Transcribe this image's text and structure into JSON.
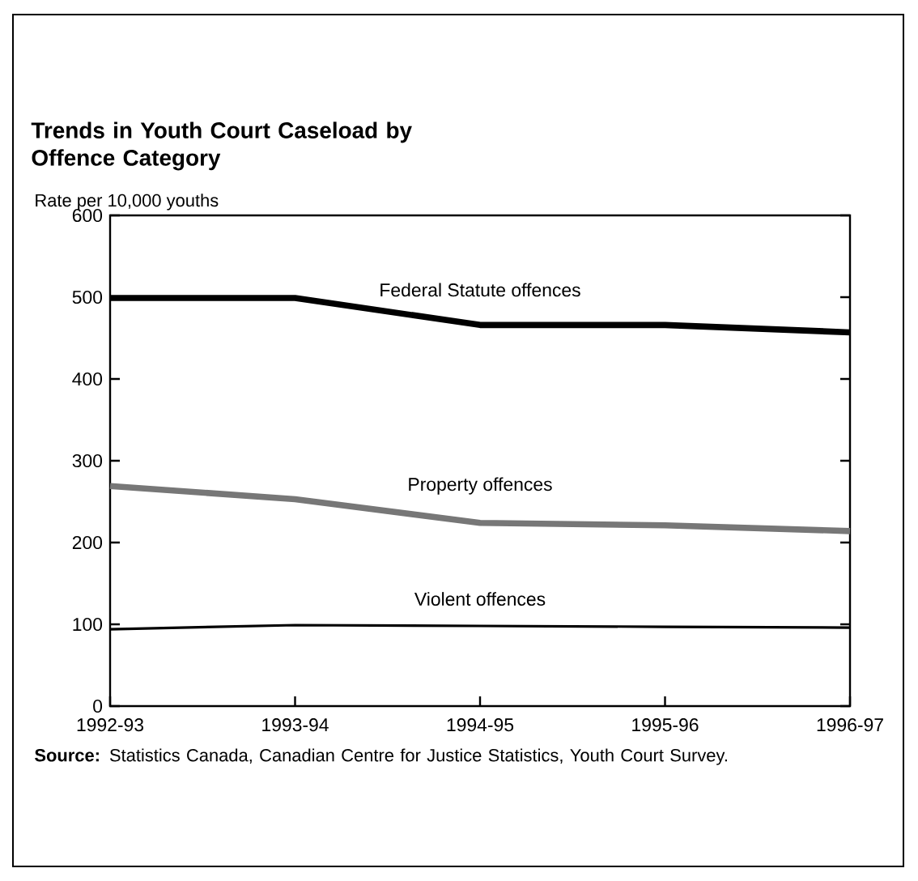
{
  "chart_data": {
    "type": "line",
    "title": "Trends in Youth Court Caseload by Offence Category",
    "ylabel": "Rate per 10,000 youths",
    "categories": [
      "1992-93",
      "1993-94",
      "1994-95",
      "1995-96",
      "1996-97"
    ],
    "series": [
      {
        "name": "Federal Statute offences",
        "color": "#000000",
        "values": [
          499,
          499,
          466,
          466,
          457
        ]
      },
      {
        "name": "Property offences",
        "color": "#777777",
        "values": [
          269,
          253,
          224,
          221,
          214
        ]
      },
      {
        "name": "Violent offences",
        "color": "#000000",
        "values": [
          94,
          99,
          98,
          97,
          96
        ]
      }
    ],
    "ylim": [
      0,
      600
    ],
    "yticks": [
      0,
      100,
      200,
      300,
      400,
      500,
      600
    ],
    "line_style": "solid",
    "annotations": [
      "**Source:** Statistics Canada, Canadian Centre for Justice Statistics, Youth Court Survey."
    ]
  }
}
